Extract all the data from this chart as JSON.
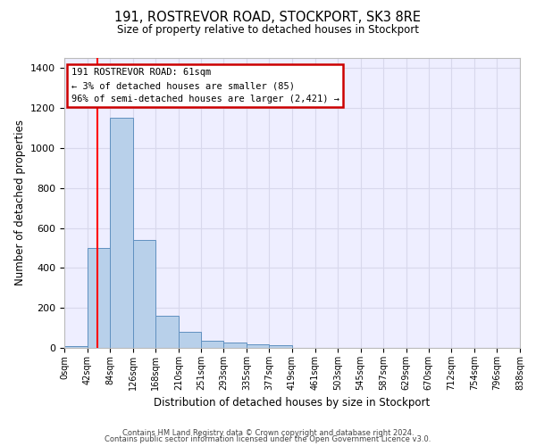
{
  "title": "191, ROSTREVOR ROAD, STOCKPORT, SK3 8RE",
  "subtitle": "Size of property relative to detached houses in Stockport",
  "xlabel": "Distribution of detached houses by size in Stockport",
  "ylabel": "Number of detached properties",
  "bin_edges": [
    0,
    42,
    84,
    126,
    168,
    210,
    251,
    293,
    335,
    377,
    419,
    461,
    503,
    545,
    587,
    629,
    670,
    712,
    754,
    796,
    838
  ],
  "bar_heights": [
    10,
    500,
    1150,
    540,
    160,
    80,
    35,
    28,
    20,
    14,
    0,
    0,
    0,
    0,
    0,
    0,
    0,
    0,
    0,
    0
  ],
  "bar_color": "#b8d0ea",
  "bar_edge_color": "#6090c0",
  "grid_color": "#d8d8ec",
  "background_color": "#eeeeff",
  "red_line_x": 61,
  "annotation_text": "191 ROSTREVOR ROAD: 61sqm\n← 3% of detached houses are smaller (85)\n96% of semi-detached houses are larger (2,421) →",
  "annotation_box_facecolor": "#ffffff",
  "annotation_box_edgecolor": "#cc0000",
  "ylim": [
    0,
    1450
  ],
  "yticks": [
    0,
    200,
    400,
    600,
    800,
    1000,
    1200,
    1400
  ],
  "footer_line1": "Contains HM Land Registry data © Crown copyright and database right 2024.",
  "footer_line2": "Contains public sector information licensed under the Open Government Licence v3.0."
}
